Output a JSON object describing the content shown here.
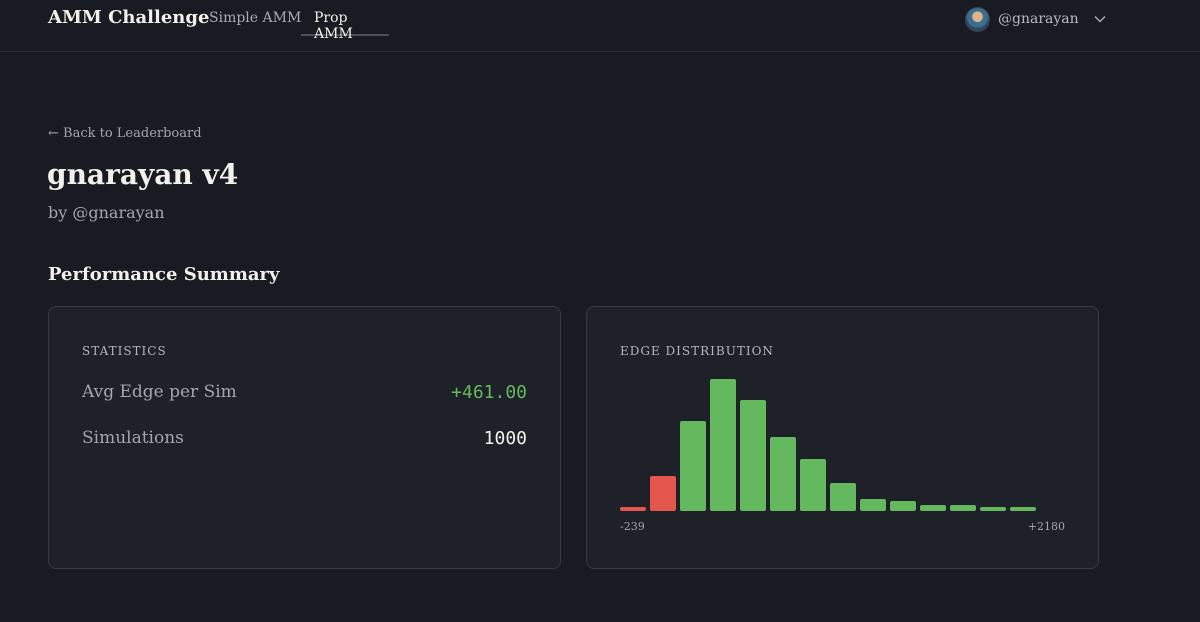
{
  "nav": {
    "brand": "AMM Challenge",
    "tabs": [
      {
        "label": "Simple AMM",
        "active": false
      },
      {
        "label": "Prop AMM",
        "active": true
      }
    ],
    "user": {
      "handle": "@gnarayan",
      "icon": "chevron-down-icon"
    }
  },
  "page": {
    "back_link": "← Back to Leaderboard",
    "title": "gnarayan v4",
    "byline": "by @gnarayan",
    "section_title": "Performance Summary"
  },
  "statistics": {
    "label": "STATISTICS",
    "rows": [
      {
        "name": "Avg Edge per Sim",
        "value": "+461.00"
      },
      {
        "name": "Simulations",
        "value": "1000"
      }
    ]
  },
  "edge_distribution": {
    "label": "EDGE DISTRIBUTION",
    "min_label": "-239",
    "max_label": "+2180"
  },
  "colors": {
    "positive": "#64b95e",
    "negative": "#e5574c",
    "background": "#181b21",
    "card": "#1e2128"
  },
  "chart_data": {
    "type": "bar",
    "title": "EDGE DISTRIBUTION",
    "x_range": [
      -239,
      2180
    ],
    "values": [
      4,
      35,
      90,
      132,
      111,
      74,
      52,
      28,
      12,
      10,
      6,
      6,
      4,
      4
    ],
    "colors": [
      "negative",
      "negative",
      "positive",
      "positive",
      "positive",
      "positive",
      "positive",
      "positive",
      "positive",
      "positive",
      "positive",
      "positive",
      "positive",
      "positive"
    ],
    "ylim": [
      0,
      132
    ],
    "grid": false
  }
}
